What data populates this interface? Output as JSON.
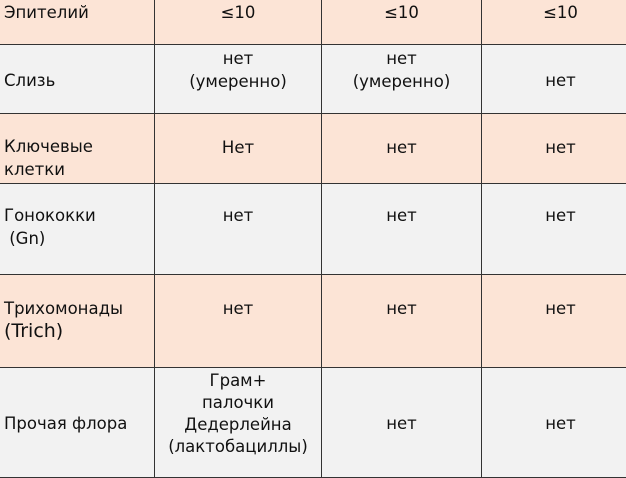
{
  "rows": [
    {
      "label": "Эпителий",
      "values": [
        "≤10",
        "≤10",
        "≤10"
      ],
      "shade": "peach"
    },
    {
      "label": "Слизь",
      "values": [
        "нет\n(умеренно)",
        "нет\n(умеренно)",
        "нет"
      ],
      "shade": "gray"
    },
    {
      "label": "Ключевые\nклетки",
      "values": [
        "Нет",
        "нет",
        "нет"
      ],
      "shade": "peach"
    },
    {
      "label": "Гонококки\n (Gn)",
      "values": [
        "нет",
        "нет",
        "нет"
      ],
      "shade": "gray"
    },
    {
      "label": "Трихомонады",
      "label2": "(Trich)",
      "values": [
        "нет",
        "нет",
        "нет"
      ],
      "shade": "peach"
    },
    {
      "label": "Прочая флора",
      "values": [
        "Грам+\nпалочки\nДедерлейна\n(лактобациллы)",
        "нет",
        "нет"
      ],
      "shade": "gray"
    }
  ],
  "colors": {
    "peach": "#fce4d6",
    "gray": "#f2f2f2",
    "border": "#333333"
  }
}
